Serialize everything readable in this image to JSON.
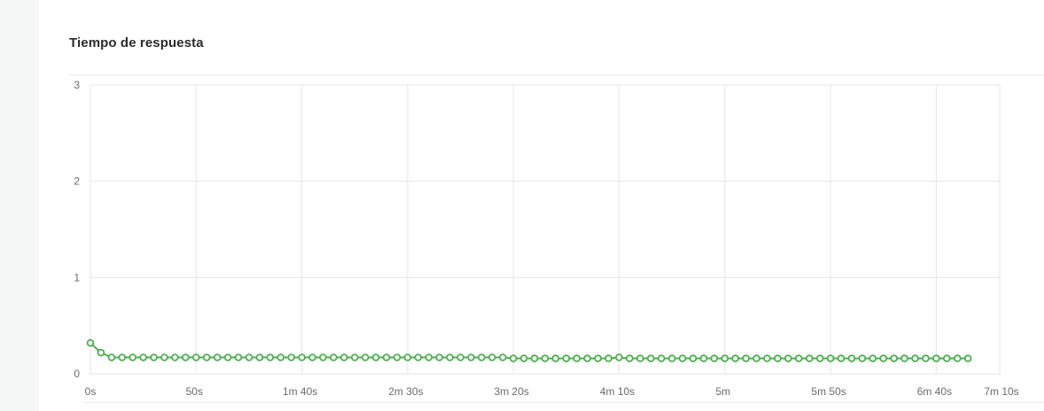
{
  "card": {
    "title": "Tiempo de respuesta"
  },
  "colors": {
    "series": "#4caf50",
    "grid": "#e6e6e6",
    "axis_text": "#6b6b6b"
  },
  "chart_data": {
    "type": "line",
    "title": "Tiempo de respuesta",
    "xlabel": "",
    "ylabel": "",
    "x_unit": "seconds",
    "xlim": [
      0,
      430
    ],
    "ylim": [
      0,
      3
    ],
    "x_ticks": [
      {
        "value": 0,
        "label": "0s"
      },
      {
        "value": 50,
        "label": "50s"
      },
      {
        "value": 100,
        "label": "1m 40s"
      },
      {
        "value": 150,
        "label": "2m 30s"
      },
      {
        "value": 200,
        "label": "3m 20s"
      },
      {
        "value": 250,
        "label": "4m 10s"
      },
      {
        "value": 300,
        "label": "5m"
      },
      {
        "value": 350,
        "label": "5m 50s"
      },
      {
        "value": 400,
        "label": "6m 40s"
      },
      {
        "value": 430,
        "label": "7m 10s"
      }
    ],
    "y_ticks": [
      {
        "value": 0,
        "label": "0"
      },
      {
        "value": 1,
        "label": "1"
      },
      {
        "value": 2,
        "label": "2"
      },
      {
        "value": 3,
        "label": "3"
      }
    ],
    "grid": true,
    "legend": "none",
    "series": [
      {
        "x": [
          0,
          5,
          10,
          15,
          20,
          25,
          30,
          35,
          40,
          45,
          50,
          55,
          60,
          65,
          70,
          75,
          80,
          85,
          90,
          95,
          100,
          105,
          110,
          115,
          120,
          125,
          130,
          135,
          140,
          145,
          150,
          155,
          160,
          165,
          170,
          175,
          180,
          185,
          190,
          195,
          200,
          205,
          210,
          215,
          220,
          225,
          230,
          235,
          240,
          245,
          250,
          255,
          260,
          265,
          270,
          275,
          280,
          285,
          290,
          295,
          300,
          305,
          310,
          315,
          320,
          325,
          330,
          335,
          340,
          345,
          350,
          355,
          360,
          365,
          370,
          375,
          380,
          385,
          390,
          395,
          400,
          405,
          410,
          415
        ],
        "values": [
          0.32,
          0.22,
          0.17,
          0.17,
          0.17,
          0.17,
          0.17,
          0.17,
          0.17,
          0.17,
          0.17,
          0.17,
          0.17,
          0.17,
          0.17,
          0.17,
          0.17,
          0.17,
          0.17,
          0.17,
          0.17,
          0.17,
          0.17,
          0.17,
          0.17,
          0.17,
          0.17,
          0.17,
          0.17,
          0.17,
          0.17,
          0.17,
          0.17,
          0.17,
          0.17,
          0.17,
          0.17,
          0.17,
          0.17,
          0.17,
          0.16,
          0.16,
          0.16,
          0.16,
          0.16,
          0.16,
          0.16,
          0.16,
          0.16,
          0.16,
          0.17,
          0.16,
          0.16,
          0.16,
          0.16,
          0.16,
          0.16,
          0.16,
          0.16,
          0.16,
          0.16,
          0.16,
          0.16,
          0.16,
          0.16,
          0.16,
          0.16,
          0.16,
          0.16,
          0.16,
          0.16,
          0.16,
          0.16,
          0.16,
          0.16,
          0.16,
          0.16,
          0.16,
          0.16,
          0.16,
          0.16,
          0.16,
          0.16,
          0.16
        ]
      }
    ]
  }
}
